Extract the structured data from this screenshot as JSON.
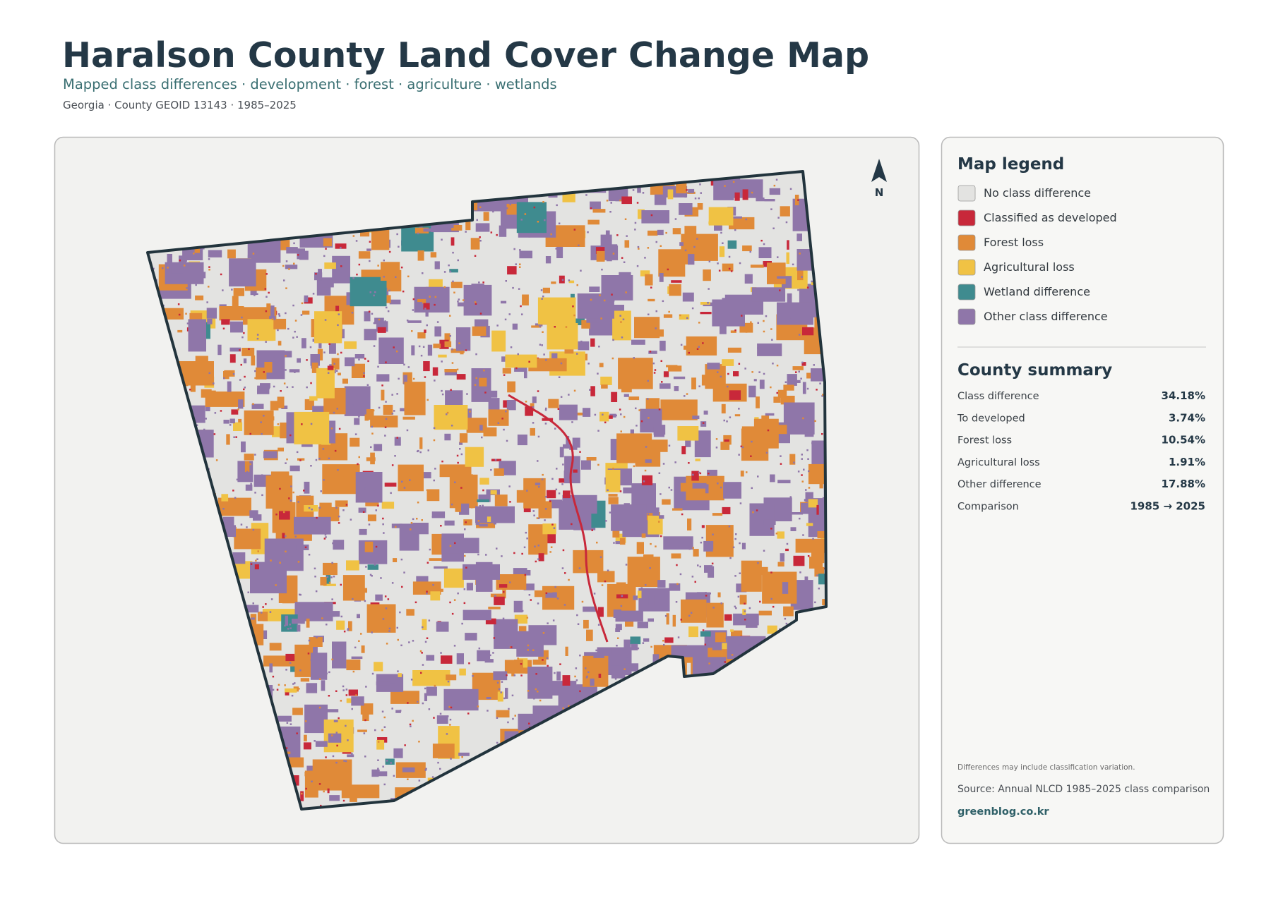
{
  "header": {
    "title": "Haralson County Land Cover Change Map",
    "subtitle": "Mapped class differences · development · forest · agriculture · wetlands",
    "meta": "Georgia · County GEOID 13143 · 1985–2025"
  },
  "map": {
    "north_label": "N"
  },
  "legend": {
    "title": "Map legend",
    "items": [
      {
        "label": "No class difference",
        "color": "#e3e3e1"
      },
      {
        "label": "Classified as developed",
        "color": "#c8283a"
      },
      {
        "label": "Forest loss",
        "color": "#e08a38"
      },
      {
        "label": "Agricultural loss",
        "color": "#f0c244"
      },
      {
        "label": "Wetland difference",
        "color": "#3f8b8f"
      },
      {
        "label": "Other class difference",
        "color": "#8f76a9"
      }
    ]
  },
  "summary": {
    "title": "County summary",
    "rows": [
      {
        "label": "Class difference",
        "value": "34.18%"
      },
      {
        "label": "To developed",
        "value": "3.74%"
      },
      {
        "label": "Forest loss",
        "value": "10.54%"
      },
      {
        "label": "Agricultural loss",
        "value": "1.91%"
      },
      {
        "label": "Other difference",
        "value": "17.88%"
      },
      {
        "label": "Comparison",
        "value": "1985 → 2025"
      }
    ]
  },
  "footer": {
    "note": "Differences may include classification variation.",
    "source": "Source: Annual NLCD 1985–2025 class comparison",
    "site": "greenblog.co.kr"
  }
}
